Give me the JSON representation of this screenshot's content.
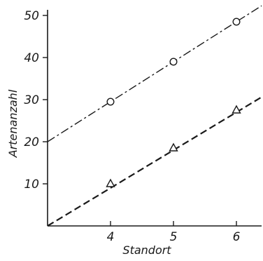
{
  "chart_data": {
    "type": "line",
    "title": "",
    "xlabel": "Standort",
    "ylabel": "Artenanzahl",
    "xlim": [
      3,
      6.4
    ],
    "ylim": [
      0,
      50
    ],
    "x_ticks": [
      4,
      5,
      6
    ],
    "x_tick_labels": [
      "4",
      "5",
      "6"
    ],
    "y_ticks": [
      10,
      20,
      30,
      40,
      50
    ],
    "y_tick_labels": [
      "10",
      "20",
      "30",
      "40",
      "50"
    ],
    "grid": false,
    "legend": "none",
    "series": [
      {
        "marker": "circle",
        "line_style": "dash-dot",
        "points": [
          {
            "x": 4,
            "y": 29.5
          },
          {
            "x": 5,
            "y": 39
          },
          {
            "x": 6,
            "y": 48.5
          }
        ],
        "fit_line": [
          {
            "x": 3,
            "y": 20
          },
          {
            "x": 6.4,
            "y": 52.3
          }
        ]
      },
      {
        "marker": "triangle",
        "line_style": "dashed",
        "points": [
          {
            "x": 4,
            "y": 10
          },
          {
            "x": 5,
            "y": 18.5
          },
          {
            "x": 6,
            "y": 27.5
          }
        ],
        "fit_line": [
          {
            "x": 3,
            "y": 0
          },
          {
            "x": 6.4,
            "y": 30.6
          }
        ]
      }
    ]
  }
}
